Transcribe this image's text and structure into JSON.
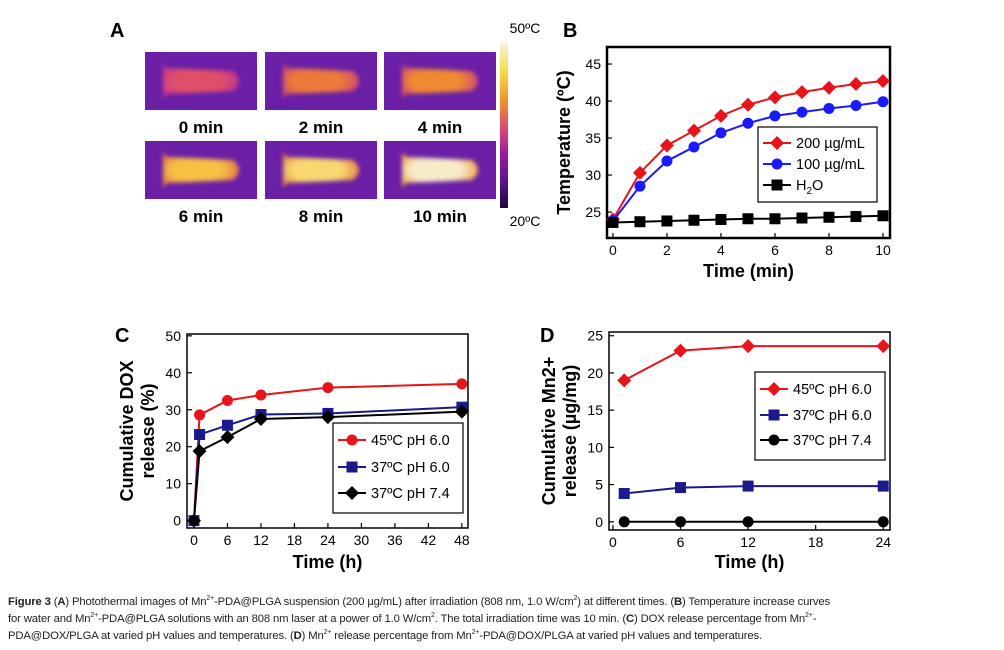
{
  "panel_a": {
    "label": "A",
    "colorbar": {
      "max_label": "50ºC",
      "min_label": "20ºC",
      "colors": [
        "#f7f3e6",
        "#f5e04a",
        "#f39a2a",
        "#e0506a",
        "#a11aa0",
        "#5a128f",
        "#1e0840"
      ]
    },
    "background_color": "#6a1fa6",
    "frames": [
      {
        "label": "0 min",
        "core": "#e0506a",
        "glow": "#b8309a"
      },
      {
        "label": "2 min",
        "core": "#ec7a3a",
        "glow": "#c8407c"
      },
      {
        "label": "4 min",
        "core": "#ef8a32",
        "glow": "#c8407c"
      },
      {
        "label": "6 min",
        "core": "#f6c043",
        "glow": "#e0704a"
      },
      {
        "label": "8 min",
        "core": "#f8d770",
        "glow": "#e07a44"
      },
      {
        "label": "10 min",
        "core": "#f7ecc8",
        "glow": "#ec9a3a"
      }
    ]
  },
  "chart_data": [
    {
      "panel": "B",
      "type": "line",
      "xlabel": "Time (min)",
      "ylabel": "Temperature (ºC)",
      "xlim": [
        -0.22,
        10.26
      ],
      "ylim": [
        21.5,
        47.3
      ],
      "xticks": [
        0,
        2,
        4,
        6,
        8,
        10
      ],
      "yticks": [
        25,
        30,
        35,
        40,
        45
      ],
      "grid": false,
      "legend": "center-right",
      "x": [
        0,
        1,
        2,
        3,
        4,
        5,
        6,
        7,
        8,
        9,
        10
      ],
      "series": [
        {
          "name": "200 µg/mL",
          "color": "#e8141a",
          "marker": "diamond",
          "values": [
            24,
            30.3,
            34,
            36,
            38,
            39.5,
            40.5,
            41.2,
            41.8,
            42.3,
            42.7
          ]
        },
        {
          "name": "100 µg/mL",
          "color": "#1a1aff",
          "marker": "circle",
          "values": [
            23.8,
            28.5,
            31.9,
            33.8,
            35.7,
            37,
            38,
            38.5,
            39,
            39.4,
            39.9
          ]
        },
        {
          "name": "H2O",
          "name_parts": [
            "H",
            "2",
            "O"
          ],
          "color": "#000000",
          "marker": "square",
          "values": [
            23.6,
            23.7,
            23.8,
            23.9,
            24,
            24.1,
            24.1,
            24.2,
            24.3,
            24.4,
            24.5
          ]
        }
      ]
    },
    {
      "panel": "C",
      "type": "line",
      "xlabel": "Time (h)",
      "ylabel": [
        "Cumulative DOX",
        "release (%)"
      ],
      "xlim": [
        -1.25,
        49.1
      ],
      "ylim": [
        -2,
        50.5
      ],
      "xticks": [
        0,
        6,
        12,
        18,
        24,
        30,
        36,
        42,
        48
      ],
      "yticks": [
        0,
        10,
        20,
        30,
        40,
        50
      ],
      "grid": false,
      "legend": "bottom-right",
      "x": [
        0,
        1,
        6,
        12,
        24,
        48
      ],
      "series": [
        {
          "name": "45ºC pH 6.0",
          "color": "#e8141a",
          "marker": "circle",
          "values": [
            0,
            28.6,
            32.5,
            34,
            36,
            37
          ]
        },
        {
          "name": "37ºC pH 6.0",
          "color": "#1a1a8c",
          "marker": "square",
          "values": [
            0,
            23.3,
            25.8,
            28.7,
            29,
            30.7
          ]
        },
        {
          "name": "37ºC pH 7.4",
          "color": "#000000",
          "marker": "diamond",
          "values": [
            0,
            18.8,
            22.6,
            27.5,
            28,
            29.5
          ]
        }
      ]
    },
    {
      "panel": "D",
      "type": "line",
      "xlabel": "Time (h)",
      "ylabel": [
        "Cumulative Mn2+",
        "release (µg/mg)"
      ],
      "xlim": [
        -0.35,
        24.6
      ],
      "ylim": [
        -1.1,
        25.5
      ],
      "xticks": [
        0,
        6,
        12,
        18,
        24
      ],
      "yticks": [
        0,
        5,
        10,
        15,
        20,
        25
      ],
      "grid": false,
      "legend": "right",
      "x": [
        1,
        6,
        12,
        24
      ],
      "series": [
        {
          "name": "45ºC pH 6.0",
          "color": "#e8141a",
          "marker": "diamond",
          "values": [
            19,
            23,
            23.6,
            23.6
          ]
        },
        {
          "name": "37ºC pH 6.0",
          "color": "#1a1a8c",
          "marker": "square",
          "values": [
            3.8,
            4.6,
            4.8,
            4.8
          ]
        },
        {
          "name": "37ºC pH 7.4",
          "color": "#000000",
          "marker": "circle",
          "values": [
            0,
            0,
            0,
            0
          ]
        }
      ]
    }
  ],
  "caption": {
    "lines": [
      [
        {
          "t": "Figure 3",
          "b": true
        },
        {
          "t": " ("
        },
        {
          "t": "A",
          "b": true
        },
        {
          "t": ") Photothermal images of Mn"
        },
        {
          "t": "2+",
          "sup": true
        },
        {
          "t": "-PDA@PLGA suspension (200 µg/mL) after irradiation (808 nm, 1.0 W/cm"
        },
        {
          "t": "2",
          "sup": true
        },
        {
          "t": ") at different times. ("
        },
        {
          "t": "B",
          "b": true
        },
        {
          "t": ") Temperature increase curves"
        }
      ],
      [
        {
          "t": "for water and Mn"
        },
        {
          "t": "2+",
          "sup": true
        },
        {
          "t": "-PDA@PLGA solutions with an 808 nm laser at a power of 1.0 W/cm"
        },
        {
          "t": "2",
          "sup": true
        },
        {
          "t": ". The total irradiation time was 10 min. ("
        },
        {
          "t": "C",
          "b": true
        },
        {
          "t": ") DOX release percentage from Mn"
        },
        {
          "t": "2+",
          "sup": true
        },
        {
          "t": "-"
        }
      ],
      [
        {
          "t": "PDA@DOX/PLGA at varied pH values and temperatures. ("
        },
        {
          "t": "D",
          "b": true
        },
        {
          "t": ") Mn"
        },
        {
          "t": "2+",
          "sup": true
        },
        {
          "t": " release percentage from Mn"
        },
        {
          "t": "2+",
          "sup": true
        },
        {
          "t": "-PDA@DOX/PLGA at varied pH values and temperatures."
        }
      ]
    ]
  }
}
